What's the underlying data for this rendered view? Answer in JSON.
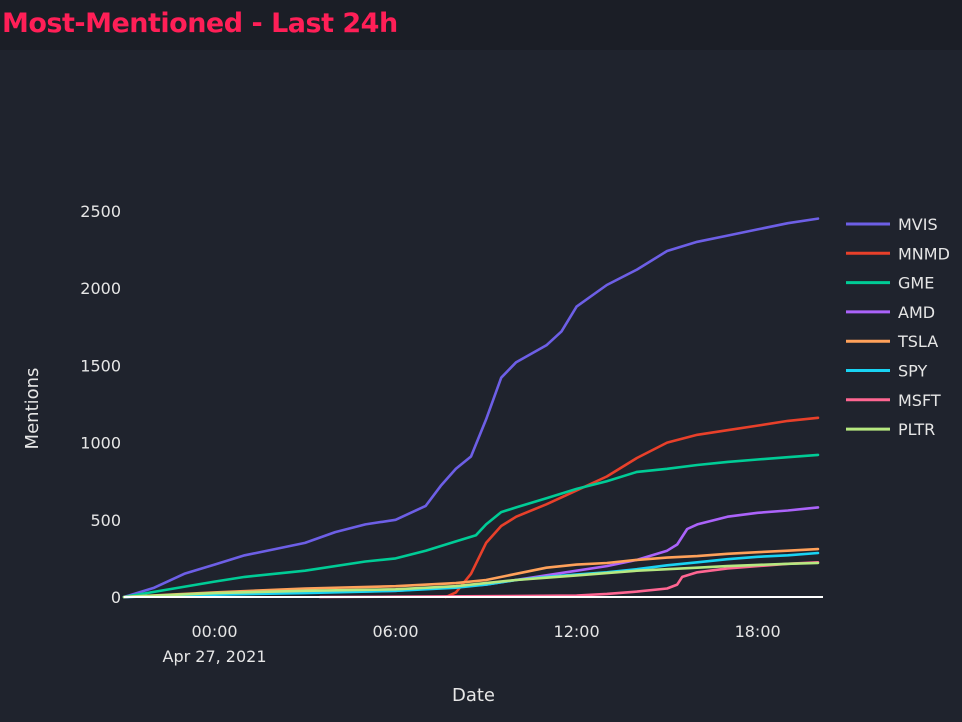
{
  "page": {
    "title": "Most-Mentioned - Last 24h"
  },
  "colors": {
    "background": "#1f232d",
    "header_background": "#1b1e26",
    "title": "#ff1f57",
    "text": "#e6e6e6",
    "zero_line": "#ffffff"
  },
  "chart_data": {
    "type": "line",
    "title": "",
    "xlabel": "Date",
    "ylabel": "Mentions",
    "ylim": [
      0,
      2700
    ],
    "xlim": [
      "2021-04-26 21:00",
      "2021-04-27 20:10"
    ],
    "grid": false,
    "legend_position": "right",
    "x_ticks": [
      {
        "x": "2021-04-27 00:00",
        "label": "00:00",
        "sublabel": "Apr 27, 2021"
      },
      {
        "x": "2021-04-27 06:00",
        "label": "06:00",
        "sublabel": ""
      },
      {
        "x": "2021-04-27 12:00",
        "label": "12:00",
        "sublabel": ""
      },
      {
        "x": "2021-04-27 18:00",
        "label": "18:00",
        "sublabel": ""
      }
    ],
    "y_ticks": [
      0,
      500,
      1000,
      1500,
      2000,
      2500
    ],
    "series": [
      {
        "name": "MVIS",
        "color": "#6d5fe6",
        "points": [
          [
            "2021-04-26 21:00",
            0
          ],
          [
            "2021-04-26 22:00",
            60
          ],
          [
            "2021-04-26 23:00",
            150
          ],
          [
            "2021-04-27 00:00",
            210
          ],
          [
            "2021-04-27 01:00",
            270
          ],
          [
            "2021-04-27 02:00",
            310
          ],
          [
            "2021-04-27 03:00",
            350
          ],
          [
            "2021-04-27 04:00",
            420
          ],
          [
            "2021-04-27 05:00",
            470
          ],
          [
            "2021-04-27 06:00",
            500
          ],
          [
            "2021-04-27 07:00",
            590
          ],
          [
            "2021-04-27 07:30",
            720
          ],
          [
            "2021-04-27 08:00",
            830
          ],
          [
            "2021-04-27 08:30",
            910
          ],
          [
            "2021-04-27 09:00",
            1150
          ],
          [
            "2021-04-27 09:30",
            1420
          ],
          [
            "2021-04-27 10:00",
            1520
          ],
          [
            "2021-04-27 11:00",
            1630
          ],
          [
            "2021-04-27 11:30",
            1720
          ],
          [
            "2021-04-27 12:00",
            1880
          ],
          [
            "2021-04-27 13:00",
            2020
          ],
          [
            "2021-04-27 14:00",
            2120
          ],
          [
            "2021-04-27 15:00",
            2240
          ],
          [
            "2021-04-27 16:00",
            2300
          ],
          [
            "2021-04-27 17:00",
            2340
          ],
          [
            "2021-04-27 18:00",
            2380
          ],
          [
            "2021-04-27 19:00",
            2420
          ],
          [
            "2021-04-27 20:00",
            2450
          ]
        ]
      },
      {
        "name": "MNMD",
        "color": "#e8402a",
        "points": [
          [
            "2021-04-27 07:40",
            0
          ],
          [
            "2021-04-27 08:00",
            30
          ],
          [
            "2021-04-27 08:30",
            150
          ],
          [
            "2021-04-27 09:00",
            350
          ],
          [
            "2021-04-27 09:30",
            460
          ],
          [
            "2021-04-27 10:00",
            520
          ],
          [
            "2021-04-27 11:00",
            600
          ],
          [
            "2021-04-27 12:00",
            690
          ],
          [
            "2021-04-27 13:00",
            780
          ],
          [
            "2021-04-27 14:00",
            900
          ],
          [
            "2021-04-27 15:00",
            1000
          ],
          [
            "2021-04-27 16:00",
            1050
          ],
          [
            "2021-04-27 17:00",
            1080
          ],
          [
            "2021-04-27 18:00",
            1110
          ],
          [
            "2021-04-27 19:00",
            1140
          ],
          [
            "2021-04-27 20:00",
            1160
          ]
        ]
      },
      {
        "name": "GME",
        "color": "#00cc96",
        "points": [
          [
            "2021-04-26 21:00",
            0
          ],
          [
            "2021-04-27 00:00",
            100
          ],
          [
            "2021-04-27 01:00",
            130
          ],
          [
            "2021-04-27 03:00",
            170
          ],
          [
            "2021-04-27 05:00",
            230
          ],
          [
            "2021-04-27 06:00",
            250
          ],
          [
            "2021-04-27 07:00",
            300
          ],
          [
            "2021-04-27 08:00",
            360
          ],
          [
            "2021-04-27 08:40",
            400
          ],
          [
            "2021-04-27 09:00",
            470
          ],
          [
            "2021-04-27 09:30",
            550
          ],
          [
            "2021-04-27 10:00",
            580
          ],
          [
            "2021-04-27 11:00",
            640
          ],
          [
            "2021-04-27 12:00",
            700
          ],
          [
            "2021-04-27 13:00",
            750
          ],
          [
            "2021-04-27 14:00",
            810
          ],
          [
            "2021-04-27 15:00",
            830
          ],
          [
            "2021-04-27 16:00",
            855
          ],
          [
            "2021-04-27 17:00",
            875
          ],
          [
            "2021-04-27 18:00",
            890
          ],
          [
            "2021-04-27 19:00",
            905
          ],
          [
            "2021-04-27 20:00",
            920
          ]
        ]
      },
      {
        "name": "AMD",
        "color": "#ab63fa",
        "points": [
          [
            "2021-04-26 21:00",
            0
          ],
          [
            "2021-04-27 00:00",
            20
          ],
          [
            "2021-04-27 06:00",
            40
          ],
          [
            "2021-04-27 09:00",
            80
          ],
          [
            "2021-04-27 12:00",
            170
          ],
          [
            "2021-04-27 13:00",
            200
          ],
          [
            "2021-04-27 14:00",
            240
          ],
          [
            "2021-04-27 15:00",
            300
          ],
          [
            "2021-04-27 15:20",
            340
          ],
          [
            "2021-04-27 15:40",
            440
          ],
          [
            "2021-04-27 16:00",
            470
          ],
          [
            "2021-04-27 17:00",
            520
          ],
          [
            "2021-04-27 18:00",
            545
          ],
          [
            "2021-04-27 19:00",
            560
          ],
          [
            "2021-04-27 20:00",
            580
          ]
        ]
      },
      {
        "name": "TSLA",
        "color": "#ffa15a",
        "points": [
          [
            "2021-04-26 21:00",
            0
          ],
          [
            "2021-04-27 00:00",
            30
          ],
          [
            "2021-04-27 03:00",
            55
          ],
          [
            "2021-04-27 06:00",
            70
          ],
          [
            "2021-04-27 08:00",
            90
          ],
          [
            "2021-04-27 09:00",
            110
          ],
          [
            "2021-04-27 10:00",
            150
          ],
          [
            "2021-04-27 11:00",
            190
          ],
          [
            "2021-04-27 12:00",
            210
          ],
          [
            "2021-04-27 13:00",
            220
          ],
          [
            "2021-04-27 14:00",
            240
          ],
          [
            "2021-04-27 15:00",
            255
          ],
          [
            "2021-04-27 16:00",
            265
          ],
          [
            "2021-04-27 17:00",
            280
          ],
          [
            "2021-04-27 18:00",
            290
          ],
          [
            "2021-04-27 19:00",
            300
          ],
          [
            "2021-04-27 20:00",
            310
          ]
        ]
      },
      {
        "name": "SPY",
        "color": "#19d3f3",
        "points": [
          [
            "2021-04-26 21:00",
            0
          ],
          [
            "2021-04-27 00:00",
            15
          ],
          [
            "2021-04-27 03:00",
            25
          ],
          [
            "2021-04-27 06:00",
            40
          ],
          [
            "2021-04-27 08:00",
            60
          ],
          [
            "2021-04-27 09:00",
            80
          ],
          [
            "2021-04-27 10:00",
            110
          ],
          [
            "2021-04-27 11:00",
            130
          ],
          [
            "2021-04-27 12:00",
            145
          ],
          [
            "2021-04-27 13:00",
            160
          ],
          [
            "2021-04-27 14:00",
            180
          ],
          [
            "2021-04-27 15:00",
            205
          ],
          [
            "2021-04-27 16:00",
            225
          ],
          [
            "2021-04-27 17:00",
            245
          ],
          [
            "2021-04-27 18:00",
            260
          ],
          [
            "2021-04-27 19:00",
            270
          ],
          [
            "2021-04-27 20:00",
            285
          ]
        ]
      },
      {
        "name": "MSFT",
        "color": "#ff6692",
        "points": [
          [
            "2021-04-27 03:30",
            0
          ],
          [
            "2021-04-27 06:00",
            2
          ],
          [
            "2021-04-27 09:00",
            5
          ],
          [
            "2021-04-27 12:00",
            10
          ],
          [
            "2021-04-27 13:00",
            20
          ],
          [
            "2021-04-27 14:00",
            35
          ],
          [
            "2021-04-27 15:00",
            55
          ],
          [
            "2021-04-27 15:20",
            80
          ],
          [
            "2021-04-27 15:30",
            130
          ],
          [
            "2021-04-27 16:00",
            160
          ],
          [
            "2021-04-27 17:00",
            185
          ],
          [
            "2021-04-27 18:00",
            200
          ],
          [
            "2021-04-27 19:00",
            215
          ],
          [
            "2021-04-27 20:00",
            225
          ]
        ]
      },
      {
        "name": "PLTR",
        "color": "#b6e880",
        "points": [
          [
            "2021-04-26 21:00",
            0
          ],
          [
            "2021-04-27 00:00",
            25
          ],
          [
            "2021-04-27 03:00",
            40
          ],
          [
            "2021-04-27 06:00",
            50
          ],
          [
            "2021-04-27 08:00",
            70
          ],
          [
            "2021-04-27 09:00",
            90
          ],
          [
            "2021-04-27 10:00",
            110
          ],
          [
            "2021-04-27 11:00",
            125
          ],
          [
            "2021-04-27 12:00",
            140
          ],
          [
            "2021-04-27 13:00",
            155
          ],
          [
            "2021-04-27 14:00",
            170
          ],
          [
            "2021-04-27 15:00",
            180
          ],
          [
            "2021-04-27 16:00",
            190
          ],
          [
            "2021-04-27 17:00",
            200
          ],
          [
            "2021-04-27 18:00",
            208
          ],
          [
            "2021-04-27 19:00",
            215
          ],
          [
            "2021-04-27 20:00",
            220
          ]
        ]
      }
    ]
  }
}
